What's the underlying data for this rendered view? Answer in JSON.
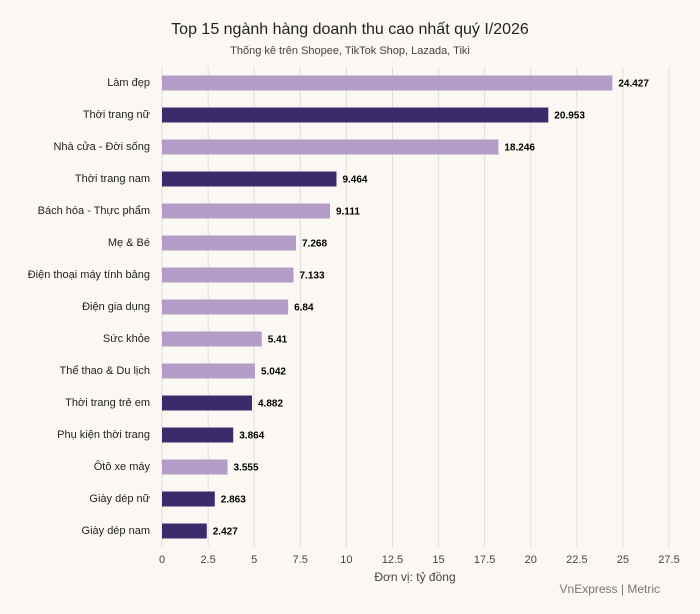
{
  "chart_data": {
    "type": "barh",
    "title": "Top 15 ngành hàng doanh thu cao nhất quý I/2026",
    "subtitle": "Thống kê trên Shopee, TikTok Shop, Lazada, Tiki",
    "x_label": "Đơn vị: tỷ đồng",
    "source": "VnExpress | Metric",
    "categories": [
      "Làm đẹp",
      "Thời trang nữ",
      "Nhà cửa - Đời sống",
      "Thời trang nam",
      "Bách hóa - Thực phẩm",
      "Mẹ & Bé",
      "Điện thoại máy tính bảng",
      "Điện gia dụng",
      "Sức khỏe",
      "Thể thao & Du lịch",
      "Thời trang trẻ em",
      "Phụ kiện thời trang",
      "Ôtô xe máy",
      "Giày dép nữ",
      "Giày dép nam"
    ],
    "values": [
      24.427,
      20.953,
      18.246,
      9.464,
      9.111,
      7.268,
      7.133,
      6.84,
      5.41,
      5.042,
      4.882,
      3.864,
      3.555,
      2.863,
      2.427
    ],
    "colors": [
      "#b49cc8",
      "#3b2b6b",
      "#b49cc8",
      "#3b2b6b",
      "#b49cc8",
      "#b49cc8",
      "#b49cc8",
      "#b49cc8",
      "#b49cc8",
      "#b49cc8",
      "#3b2b6b",
      "#3b2b6b",
      "#b49cc8",
      "#3b2b6b",
      "#3b2b6b"
    ],
    "xlim": [
      0,
      27.5
    ],
    "xticks": [
      0,
      2.5,
      5,
      7.5,
      10,
      12.5,
      15,
      17.5,
      20,
      22.5,
      25,
      27.5
    ],
    "grid": true
  }
}
